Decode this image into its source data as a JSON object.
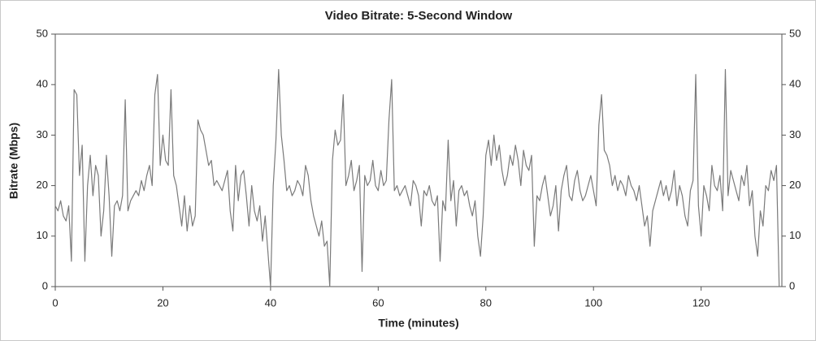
{
  "chart_data": {
    "type": "line",
    "title": "Video Bitrate: 5-Second Window",
    "x_label": "Time (minutes)",
    "y_label": "Bitrate (Mbps)",
    "color": "#7a7a7a",
    "xlim": [
      0,
      135
    ],
    "xticks": [
      0,
      20,
      40,
      60,
      80,
      100,
      120
    ],
    "ylim": [
      0,
      50
    ],
    "yticks": [
      0,
      10,
      20,
      30,
      40,
      50
    ],
    "y2lim": [
      0,
      50
    ],
    "y2ticks": [
      0,
      10,
      20,
      30,
      40,
      50
    ],
    "x": [
      0,
      0.5,
      1,
      1.5,
      2,
      2.5,
      3,
      3.5,
      4,
      4.5,
      5,
      5.5,
      6,
      6.5,
      7,
      7.5,
      8,
      8.5,
      9,
      9.5,
      10,
      10.5,
      11,
      11.5,
      12,
      12.5,
      13,
      13.5,
      14,
      14.5,
      15,
      15.5,
      16,
      16.5,
      17,
      17.5,
      18,
      18.5,
      19,
      19.5,
      20,
      20.5,
      21,
      21.5,
      22,
      22.5,
      23,
      23.5,
      24,
      24.5,
      25,
      25.5,
      26,
      26.5,
      27,
      27.5,
      28,
      28.5,
      29,
      29.5,
      30,
      30.5,
      31,
      31.5,
      32,
      32.5,
      33,
      33.5,
      34,
      34.5,
      35,
      35.5,
      36,
      36.5,
      37,
      37.5,
      38,
      38.5,
      39,
      39.5,
      40,
      40.5,
      41,
      41.5,
      42,
      42.5,
      43,
      43.5,
      44,
      44.5,
      45,
      45.5,
      46,
      46.5,
      47,
      47.5,
      48,
      48.5,
      49,
      49.5,
      50,
      50.5,
      51,
      51.5,
      52,
      52.5,
      53,
      53.5,
      54,
      54.5,
      55,
      55.5,
      56,
      56.5,
      57,
      57.5,
      58,
      58.5,
      59,
      59.5,
      60,
      60.5,
      61,
      61.5,
      62,
      62.5,
      63,
      63.5,
      64,
      64.5,
      65,
      65.5,
      66,
      66.5,
      67,
      67.5,
      68,
      68.5,
      69,
      69.5,
      70,
      70.5,
      71,
      71.5,
      72,
      72.5,
      73,
      73.5,
      74,
      74.5,
      75,
      75.5,
      76,
      76.5,
      77,
      77.5,
      78,
      78.5,
      79,
      79.5,
      80,
      80.5,
      81,
      81.5,
      82,
      82.5,
      83,
      83.5,
      84,
      84.5,
      85,
      85.5,
      86,
      86.5,
      87,
      87.5,
      88,
      88.5,
      89,
      89.5,
      90,
      90.5,
      91,
      91.5,
      92,
      92.5,
      93,
      93.5,
      94,
      94.5,
      95,
      95.5,
      96,
      96.5,
      97,
      97.5,
      98,
      98.5,
      99,
      99.5,
      100,
      100.5,
      101,
      101.5,
      102,
      102.5,
      103,
      103.5,
      104,
      104.5,
      105,
      105.5,
      106,
      106.5,
      107,
      107.5,
      108,
      108.5,
      109,
      109.5,
      110,
      110.5,
      111,
      111.5,
      112,
      112.5,
      113,
      113.5,
      114,
      114.5,
      115,
      115.5,
      116,
      116.5,
      117,
      117.5,
      118,
      118.5,
      119,
      119.5,
      120,
      120.5,
      121,
      121.5,
      122,
      122.5,
      123,
      123.5,
      124,
      124.5,
      125,
      125.5,
      126,
      126.5,
      127,
      127.5,
      128,
      128.5,
      129,
      129.5,
      130,
      130.5,
      131,
      131.5,
      132,
      132.5,
      133,
      133.5,
      134,
      134.5
    ],
    "values": [
      16,
      15,
      17,
      14,
      13,
      16,
      5,
      39,
      38,
      22,
      28,
      5,
      20,
      26,
      18,
      24,
      22,
      10,
      15,
      26,
      18,
      6,
      16,
      17,
      15,
      18,
      37,
      15,
      17,
      18,
      19,
      18,
      21,
      19,
      22,
      24,
      20,
      38,
      42,
      24,
      30,
      25,
      24,
      39,
      22,
      20,
      16,
      12,
      18,
      11,
      16,
      12,
      14,
      33,
      31,
      30,
      27,
      24,
      25,
      20,
      21,
      20,
      19,
      21,
      23,
      15,
      11,
      24,
      17,
      22,
      23,
      18,
      12,
      20,
      15,
      13,
      16,
      9,
      14,
      7,
      0,
      20,
      29,
      43,
      30,
      25,
      19,
      20,
      18,
      19,
      21,
      20,
      18,
      24,
      22,
      17,
      14,
      12,
      10,
      13,
      8,
      9,
      0,
      25,
      31,
      28,
      29,
      38,
      20,
      22,
      25,
      19,
      21,
      24,
      3,
      22,
      20,
      21,
      25,
      20,
      19,
      23,
      20,
      21,
      33,
      41,
      19,
      20,
      18,
      19,
      20,
      18,
      16,
      21,
      20,
      18,
      12,
      19,
      18,
      20,
      17,
      16,
      18,
      5,
      17,
      15,
      29,
      17,
      21,
      12,
      19,
      20,
      18,
      19,
      16,
      14,
      17,
      10,
      6,
      14,
      26,
      29,
      24,
      30,
      25,
      28,
      23,
      20,
      22,
      26,
      24,
      28,
      25,
      20,
      27,
      24,
      23,
      26,
      8,
      18,
      17,
      20,
      22,
      18,
      14,
      16,
      20,
      11,
      19,
      22,
      24,
      18,
      17,
      21,
      23,
      19,
      17,
      18,
      20,
      22,
      19,
      16,
      32,
      38,
      27,
      26,
      24,
      20,
      22,
      19,
      21,
      20,
      18,
      22,
      20,
      19,
      17,
      20,
      16,
      12,
      14,
      8,
      15,
      17,
      19,
      21,
      18,
      20,
      17,
      19,
      23,
      16,
      20,
      18,
      14,
      12,
      19,
      21,
      42,
      16,
      10,
      20,
      18,
      15,
      24,
      20,
      19,
      22,
      15,
      43,
      18,
      23,
      21,
      19,
      17,
      22,
      20,
      24,
      16,
      19,
      10,
      6,
      15,
      12,
      20,
      19,
      23,
      21,
      24,
      0
    ]
  }
}
